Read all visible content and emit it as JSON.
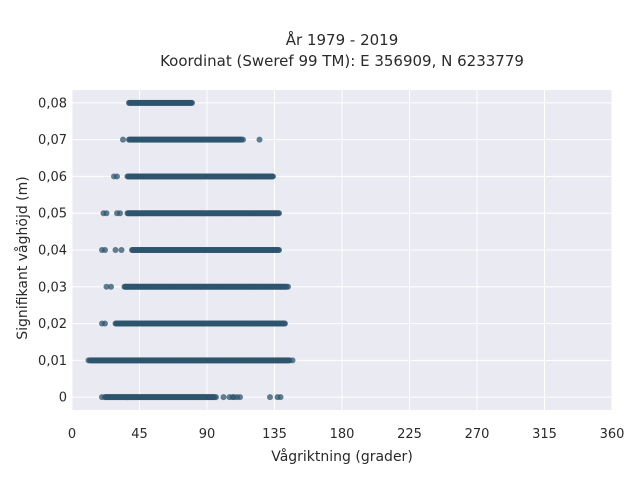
{
  "chart_data": {
    "type": "scatter",
    "title": "År 1979 - 2019",
    "subtitle": "Koordinat (Sweref 99 TM): E 356909, N 6233779",
    "xlabel": "Vågriktning (grader)",
    "ylabel": "Signifikant våghöjd (m)",
    "xlim": [
      0,
      360
    ],
    "ylim": [
      -0.0035,
      0.0835
    ],
    "xticks": [
      0,
      45,
      90,
      135,
      180,
      225,
      270,
      315,
      360
    ],
    "yticks": [
      0,
      0.01,
      0.02,
      0.03,
      0.04,
      0.05,
      0.06,
      0.07,
      0.08
    ],
    "ytick_labels": [
      "0",
      "0,01",
      "0,02",
      "0,03",
      "0,04",
      "0,05",
      "0,06",
      "0,07",
      "0,08"
    ],
    "grid": true,
    "marker_color": "#2e566e",
    "background_color": "#eaeaf2",
    "rows": [
      {
        "y": 0.0,
        "dense_from": 22,
        "dense_to": 95,
        "outliers": [
          20,
          96,
          101,
          105,
          107,
          108,
          110,
          112,
          132,
          137,
          139
        ]
      },
      {
        "y": 0.01,
        "dense_from": 12,
        "dense_to": 145,
        "outliers": [
          11,
          147
        ]
      },
      {
        "y": 0.02,
        "dense_from": 29,
        "dense_to": 142,
        "outliers": [
          20,
          22
        ]
      },
      {
        "y": 0.03,
        "dense_from": 35,
        "dense_to": 143,
        "outliers": [
          23,
          26,
          144
        ]
      },
      {
        "y": 0.04,
        "dense_from": 40,
        "dense_to": 138,
        "outliers": [
          20,
          22,
          29,
          33
        ]
      },
      {
        "y": 0.05,
        "dense_from": 37,
        "dense_to": 138,
        "outliers": [
          21,
          23,
          30,
          32
        ]
      },
      {
        "y": 0.06,
        "dense_from": 37,
        "dense_to": 134,
        "outliers": [
          28,
          30
        ]
      },
      {
        "y": 0.07,
        "dense_from": 38,
        "dense_to": 113,
        "outliers": [
          34,
          114,
          125
        ]
      },
      {
        "y": 0.08,
        "dense_from": 38,
        "dense_to": 80,
        "outliers": []
      }
    ]
  }
}
